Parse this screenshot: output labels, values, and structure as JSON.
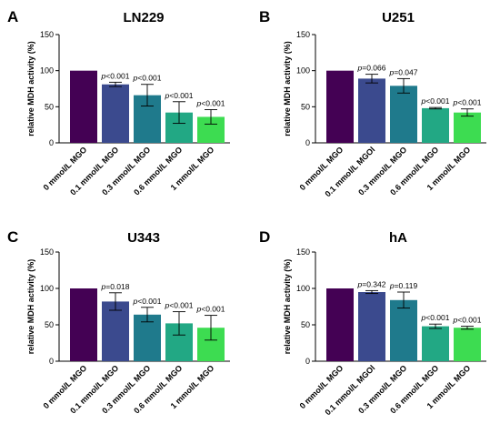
{
  "chart_data": [
    {
      "type": "bar",
      "panel": "A",
      "title": "LN229",
      "ylabel": "relative MDH activity (%)",
      "ylim": [
        0,
        150
      ],
      "yticks": [
        0,
        50,
        100,
        150
      ],
      "categories": [
        "0 mmol/L MGO",
        "0.1 mmol/L MGO",
        "0.3 mmol/L MGO",
        "0.6 mmol/L MGO",
        "1 mmol/L MGO"
      ],
      "values": [
        100,
        81,
        66,
        42,
        36
      ],
      "errors": [
        0,
        3,
        15,
        15,
        10
      ],
      "pvalues": [
        "",
        "<0.001",
        "<0.001",
        "<0.001",
        "<0.001"
      ],
      "colors": [
        "#440154",
        "#3b4a8e",
        "#1f7a8c",
        "#22a884",
        "#3ddc51"
      ]
    },
    {
      "type": "bar",
      "panel": "B",
      "title": "U251",
      "ylabel": "relative MDH activity (%)",
      "ylim": [
        0,
        150
      ],
      "yticks": [
        0,
        50,
        100,
        150
      ],
      "categories": [
        "0 mmol/L MGO",
        "0.1 mmol/L MGOl",
        "0.3 mmol/L MGO",
        "0.6 mmol/L MGO",
        "1 mmol/L MGO"
      ],
      "values": [
        100,
        89,
        79,
        48,
        42
      ],
      "errors": [
        0,
        6,
        10,
        1,
        5
      ],
      "pvalues": [
        "",
        "=0.066",
        "=0.047",
        "<0.001",
        "<0.001"
      ],
      "colors": [
        "#440154",
        "#3b4a8e",
        "#1f7a8c",
        "#22a884",
        "#3ddc51"
      ]
    },
    {
      "type": "bar",
      "panel": "C",
      "title": "U343",
      "ylabel": "relative MDH activity (%)",
      "ylim": [
        0,
        150
      ],
      "yticks": [
        0,
        50,
        100,
        150
      ],
      "categories": [
        "0 mmol/L MGO",
        "0.1 mmol/L MGO",
        "0.3 mmol/L MGO",
        "0.6 mmol/L MGO",
        "1 mmol/L MGO"
      ],
      "values": [
        100,
        82,
        64,
        52,
        46
      ],
      "errors": [
        0,
        12,
        10,
        16,
        17
      ],
      "pvalues": [
        "",
        "=0.018",
        "<0.001",
        "<0.001",
        "<0.001"
      ],
      "colors": [
        "#440154",
        "#3b4a8e",
        "#1f7a8c",
        "#22a884",
        "#3ddc51"
      ]
    },
    {
      "type": "bar",
      "panel": "D",
      "title": "hA",
      "ylabel": "relative MDH activity (%)",
      "ylim": [
        0,
        150
      ],
      "yticks": [
        0,
        50,
        100,
        150
      ],
      "categories": [
        "0 mmol/L MGO",
        "0.1 mmol/L MGOl",
        "0.3 mmol/L MGO",
        "0.6 mmol/L MGO",
        "1 mmol/L MGO"
      ],
      "values": [
        100,
        95,
        84,
        48,
        46
      ],
      "errors": [
        0,
        2,
        11,
        3,
        2
      ],
      "pvalues": [
        "",
        "=0.342",
        "=0.119",
        "<0.001",
        "<0.001"
      ],
      "colors": [
        "#440154",
        "#3b4a8e",
        "#1f7a8c",
        "#22a884",
        "#3ddc51"
      ]
    }
  ],
  "p_prefix": "p"
}
